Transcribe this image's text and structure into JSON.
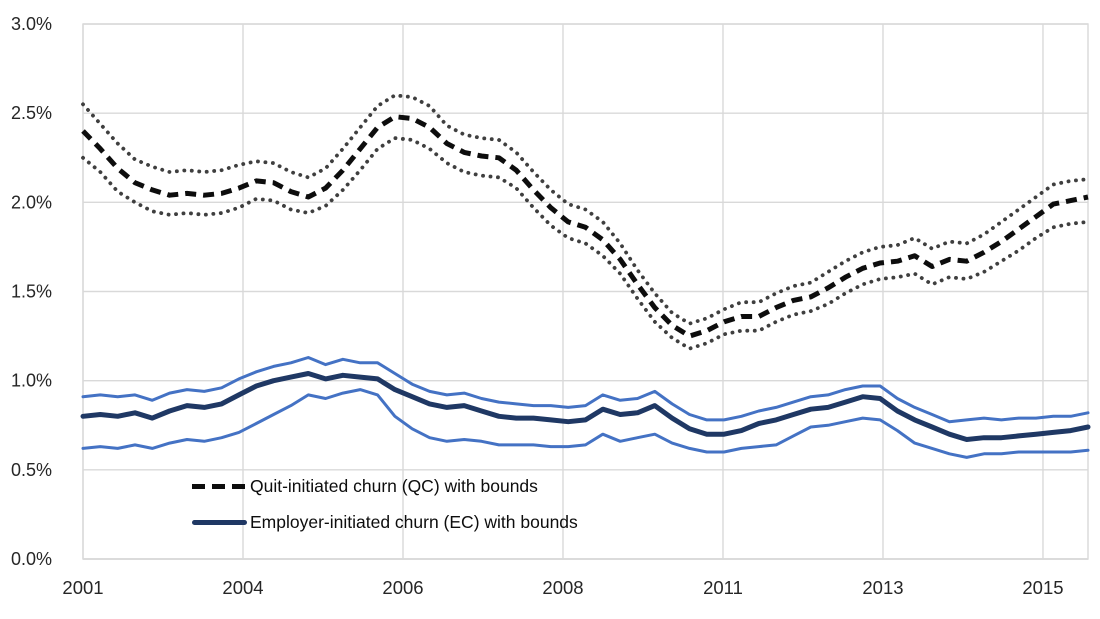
{
  "chart_data": {
    "type": "line",
    "title": "",
    "grid": true,
    "y_axis": {
      "min": 0,
      "max": 3,
      "tick_step": 0.5,
      "ticks": [
        "0.0%",
        "0.5%",
        "1.0%",
        "1.5%",
        "2.0%",
        "2.5%",
        "3.0%"
      ]
    },
    "x_axis": {
      "ticks": [
        {
          "label": "2001",
          "pos": 0.0
        },
        {
          "label": "2004",
          "pos": 0.1592
        },
        {
          "label": "2006",
          "pos": 0.3184
        },
        {
          "label": "2008",
          "pos": 0.4776
        },
        {
          "label": "2011",
          "pos": 0.6368
        },
        {
          "label": "2013",
          "pos": 0.796
        },
        {
          "label": "2015",
          "pos": 0.9552
        }
      ]
    },
    "series": [
      {
        "name": "QC upper bound",
        "role": "qc_bound",
        "values": [
          2.55,
          2.44,
          2.33,
          2.24,
          2.2,
          2.17,
          2.18,
          2.17,
          2.18,
          2.21,
          2.23,
          2.22,
          2.17,
          2.14,
          2.19,
          2.3,
          2.42,
          2.54,
          2.6,
          2.59,
          2.54,
          2.43,
          2.38,
          2.36,
          2.35,
          2.28,
          2.17,
          2.07,
          1.99,
          1.96,
          1.89,
          1.77,
          1.62,
          1.49,
          1.38,
          1.32,
          1.35,
          1.4,
          1.44,
          1.44,
          1.49,
          1.53,
          1.55,
          1.61,
          1.67,
          1.72,
          1.75,
          1.76,
          1.8,
          1.74,
          1.78,
          1.77,
          1.82,
          1.89,
          1.96,
          2.03,
          2.1,
          2.12,
          2.13
        ]
      },
      {
        "name": "QC lower bound",
        "role": "qc_bound",
        "values": [
          2.25,
          2.17,
          2.06,
          2.0,
          1.95,
          1.93,
          1.94,
          1.93,
          1.94,
          1.97,
          2.02,
          2.01,
          1.96,
          1.94,
          1.98,
          2.07,
          2.18,
          2.3,
          2.36,
          2.35,
          2.3,
          2.22,
          2.17,
          2.15,
          2.14,
          2.08,
          1.97,
          1.87,
          1.8,
          1.77,
          1.7,
          1.6,
          1.46,
          1.33,
          1.24,
          1.18,
          1.21,
          1.26,
          1.28,
          1.28,
          1.33,
          1.37,
          1.39,
          1.43,
          1.49,
          1.54,
          1.57,
          1.58,
          1.6,
          1.54,
          1.58,
          1.57,
          1.61,
          1.67,
          1.73,
          1.8,
          1.86,
          1.88,
          1.89
        ]
      },
      {
        "name": "Quit-initiated churn (QC)",
        "role": "qc",
        "values": [
          2.4,
          2.3,
          2.19,
          2.11,
          2.07,
          2.04,
          2.05,
          2.04,
          2.05,
          2.08,
          2.12,
          2.11,
          2.06,
          2.03,
          2.08,
          2.18,
          2.3,
          2.42,
          2.48,
          2.47,
          2.42,
          2.33,
          2.28,
          2.26,
          2.25,
          2.18,
          2.07,
          1.97,
          1.89,
          1.86,
          1.79,
          1.68,
          1.54,
          1.41,
          1.31,
          1.25,
          1.28,
          1.33,
          1.36,
          1.36,
          1.41,
          1.45,
          1.47,
          1.52,
          1.58,
          1.63,
          1.66,
          1.67,
          1.7,
          1.64,
          1.68,
          1.67,
          1.72,
          1.78,
          1.85,
          1.92,
          1.99,
          2.01,
          2.03
        ]
      },
      {
        "name": "EC upper bound",
        "role": "ec_bound",
        "values": [
          0.91,
          0.92,
          0.91,
          0.92,
          0.89,
          0.93,
          0.95,
          0.94,
          0.96,
          1.01,
          1.05,
          1.08,
          1.1,
          1.13,
          1.09,
          1.12,
          1.1,
          1.1,
          1.04,
          0.98,
          0.94,
          0.92,
          0.93,
          0.9,
          0.88,
          0.87,
          0.86,
          0.86,
          0.85,
          0.86,
          0.92,
          0.89,
          0.9,
          0.94,
          0.87,
          0.81,
          0.78,
          0.78,
          0.8,
          0.83,
          0.85,
          0.88,
          0.91,
          0.92,
          0.95,
          0.97,
          0.97,
          0.9,
          0.85,
          0.81,
          0.77,
          0.78,
          0.79,
          0.78,
          0.79,
          0.79,
          0.8,
          0.8,
          0.82
        ]
      },
      {
        "name": "EC lower bound",
        "role": "ec_bound",
        "values": [
          0.62,
          0.63,
          0.62,
          0.64,
          0.62,
          0.65,
          0.67,
          0.66,
          0.68,
          0.71,
          0.76,
          0.81,
          0.86,
          0.92,
          0.9,
          0.93,
          0.95,
          0.92,
          0.8,
          0.73,
          0.68,
          0.66,
          0.67,
          0.66,
          0.64,
          0.64,
          0.64,
          0.63,
          0.63,
          0.64,
          0.7,
          0.66,
          0.68,
          0.7,
          0.65,
          0.62,
          0.6,
          0.6,
          0.62,
          0.63,
          0.64,
          0.69,
          0.74,
          0.75,
          0.77,
          0.79,
          0.78,
          0.72,
          0.65,
          0.62,
          0.59,
          0.57,
          0.59,
          0.59,
          0.6,
          0.6,
          0.6,
          0.6,
          0.61
        ]
      },
      {
        "name": "Employer-initiated churn (EC)",
        "role": "ec",
        "values": [
          0.8,
          0.81,
          0.8,
          0.82,
          0.79,
          0.83,
          0.86,
          0.85,
          0.87,
          0.92,
          0.97,
          1.0,
          1.02,
          1.04,
          1.01,
          1.03,
          1.02,
          1.01,
          0.95,
          0.91,
          0.87,
          0.85,
          0.86,
          0.83,
          0.8,
          0.79,
          0.79,
          0.78,
          0.77,
          0.78,
          0.84,
          0.81,
          0.82,
          0.86,
          0.79,
          0.73,
          0.7,
          0.7,
          0.72,
          0.76,
          0.78,
          0.81,
          0.84,
          0.85,
          0.88,
          0.91,
          0.9,
          0.83,
          0.78,
          0.74,
          0.7,
          0.67,
          0.68,
          0.68,
          0.69,
          0.7,
          0.71,
          0.72,
          0.74
        ]
      }
    ],
    "legend": {
      "position": "inside-bottom-left",
      "items": [
        {
          "key": "qc",
          "label": "Quit-initiated churn (QC) with bounds"
        },
        {
          "key": "ec",
          "label": "Employer-initiated churn (EC) with bounds"
        }
      ]
    },
    "colors": {
      "qc": "#0d0d0d",
      "qc_bound": "#3f3f3f",
      "ec": "#1f3864",
      "ec_bound": "#4472c4",
      "grid": "#d9d9d9",
      "axis_line": "#bfbfbf",
      "text": "#262626",
      "background": "#ffffff"
    }
  }
}
